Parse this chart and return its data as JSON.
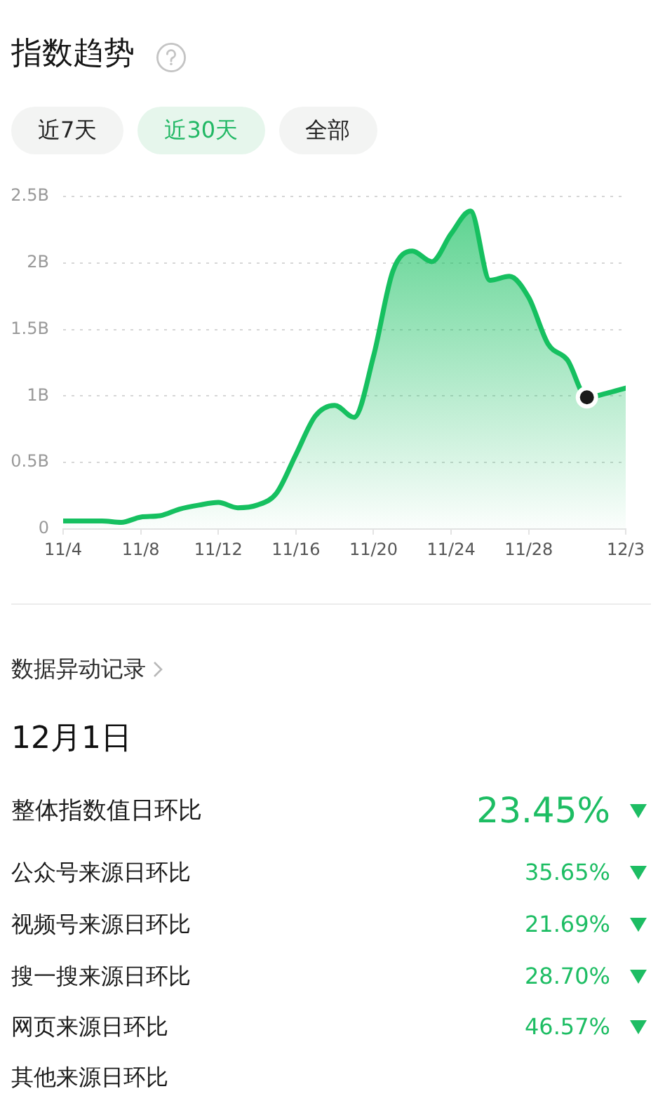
{
  "chart_data": [
    {
      "type": "area",
      "title": "指数趋势",
      "annotations": [
        "近7天",
        "近30天",
        "全部"
      ],
      "x": [
        "--11-04",
        "--11-05",
        "--11-06",
        "--11-07",
        "--11-08",
        "--11-09",
        "--11-10",
        "--11-11",
        "--11-12",
        "--11-13",
        "--11-14",
        "--11-15",
        "--11-16",
        "--11-17",
        "--11-18",
        "--11-19",
        "--11-20",
        "--11-21",
        "--11-22",
        "--11-23",
        "--11-24",
        "--11-25",
        "--11-26",
        "--11-27",
        "--11-28",
        "--11-29",
        "--11-30",
        "--12-01",
        "--12-02",
        "--12-03"
      ],
      "series": [
        {
          "color": "#16c060",
          "values": [
            0.06,
            0.06,
            0.06,
            0.05,
            0.09,
            0.1,
            0.15,
            0.18,
            0.2,
            0.16,
            0.18,
            0.27,
            0.56,
            0.85,
            0.93,
            0.84,
            1.3,
            1.94,
            2.09,
            2.01,
            2.22,
            2.39,
            1.87,
            1.9,
            1.74,
            1.39,
            1.27,
            0.99,
            1.02,
            1.06
          ]
        },
        {
          "type": "scatter",
          "x": [
            "--12-01"
          ],
          "values": [
            0.99
          ],
          "color": "#1a1a1a",
          "marker": "circle"
        }
      ],
      "xlim": [
        "--11-04",
        "--12-03"
      ],
      "xticks": [
        {
          "value": "--11-04",
          "label": "11/4"
        },
        {
          "value": "--11-08",
          "label": "11/8"
        },
        {
          "value": "--11-12",
          "label": "11/12"
        },
        {
          "value": "--11-16",
          "label": "11/16"
        },
        {
          "value": "--11-20",
          "label": "11/20"
        },
        {
          "value": "--11-24",
          "label": "11/24"
        },
        {
          "value": "--11-28",
          "label": "11/28"
        },
        {
          "value": "--12-03",
          "label": "12/3"
        }
      ],
      "ylim": [
        0,
        2.5
      ],
      "yticks": [
        0,
        {
          "value": 0.5,
          "label": "0.5B"
        },
        {
          "value": 1,
          "label": "1B"
        },
        {
          "value": 1.5,
          "label": "1.5B"
        },
        {
          "value": 2,
          "label": "2B"
        },
        {
          "value": 2.5,
          "label": "2.5B"
        }
      ],
      "grid": "y",
      "legend": false,
      "marker": "none"
    },
    {
      "type": "other",
      "title": "数据异动记录",
      "subtitle": "12月1日",
      "color": "#1dbd63",
      "categories": [
        "整体指数值日环比",
        "公众号来源日环比",
        "视频号来源日环比",
        "搜一搜来源日环比",
        "网页来源日环比",
        "其他来源日环比"
      ],
      "annotations": [
        "23.45%",
        "35.65%",
        "21.69%",
        "28.70%",
        "46.57%"
      ]
    }
  ]
}
